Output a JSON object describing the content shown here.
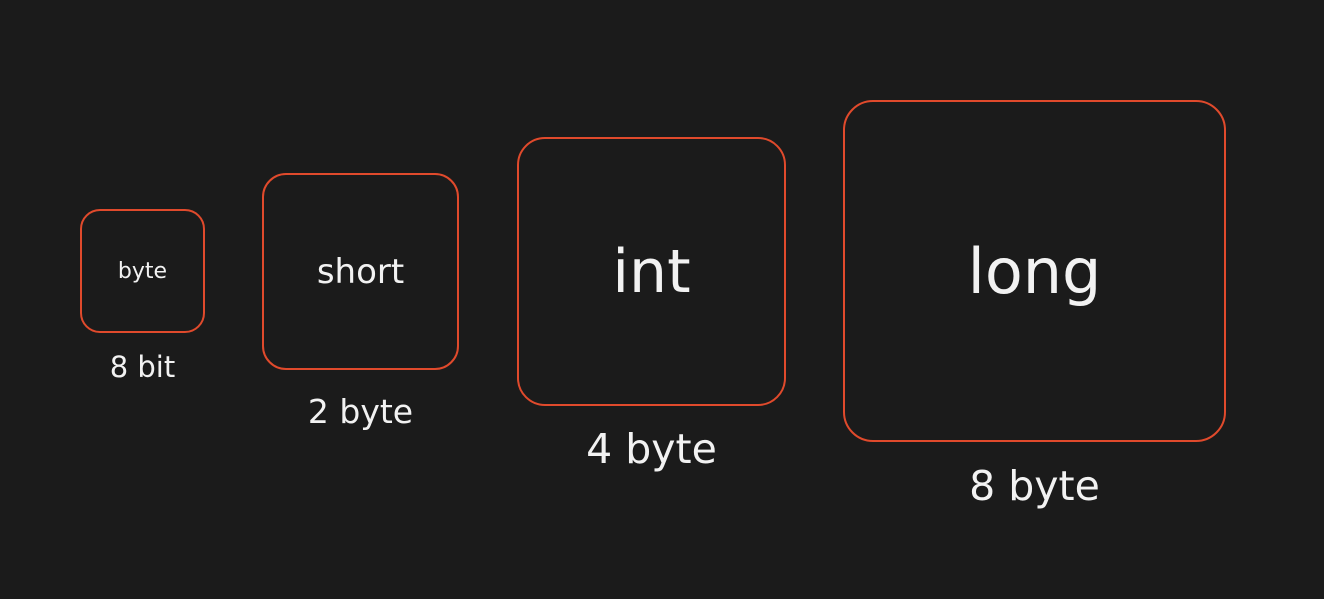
{
  "accent_color": "#e04a2c",
  "background_color": "#1b1b1b",
  "text_color": "#f2f2f2",
  "types": [
    {
      "name": "byte",
      "size": "8 bit"
    },
    {
      "name": "short",
      "size": "2 byte"
    },
    {
      "name": "int",
      "size": "4 byte"
    },
    {
      "name": "long",
      "size": "8 byte"
    }
  ]
}
